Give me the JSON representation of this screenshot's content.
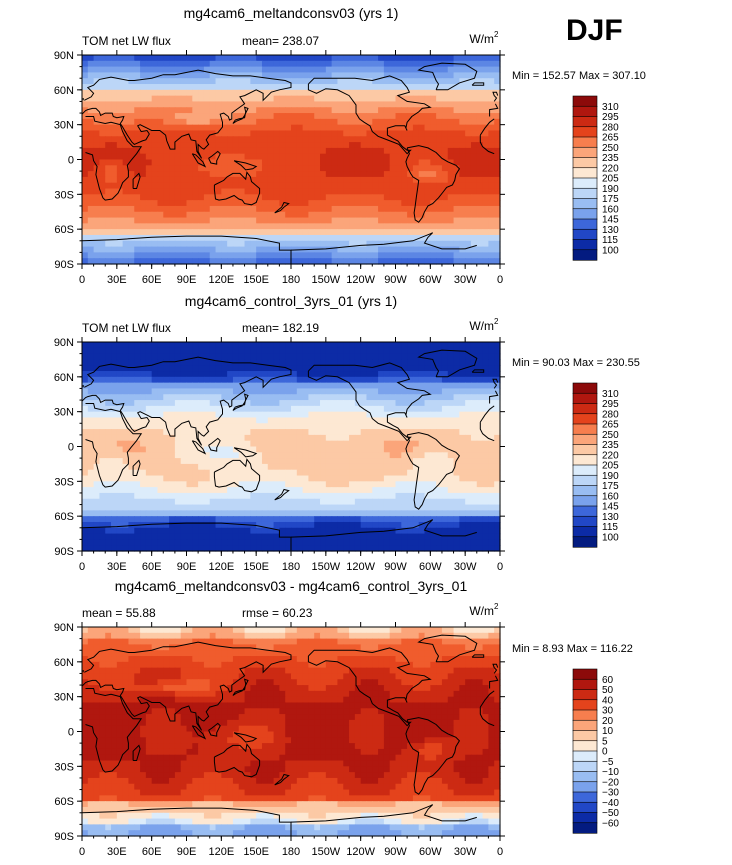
{
  "figure": {
    "season": "DJF"
  },
  "chart_data": [
    {
      "type": "heatmap",
      "title": "mg4cam6_meltandconsv03 (yrs 1)",
      "left_label": "TOM net LW flux",
      "center_label": "mean= 238.07",
      "units": "W/m",
      "units_exp": "2",
      "stats": "Min = 152.57 Max = 307.10",
      "mean": 238.07,
      "min": 152.57,
      "max": 307.1,
      "xticks": [
        "0",
        "30E",
        "60E",
        "90E",
        "120E",
        "150E",
        "180",
        "150W",
        "120W",
        "90W",
        "60W",
        "30W",
        "0"
      ],
      "yticks": [
        "90N",
        "60N",
        "30N",
        "0",
        "30S",
        "60S",
        "90S"
      ],
      "colorbar_levels": [
        "310",
        "295",
        "280",
        "265",
        "250",
        "235",
        "220",
        "205",
        "190",
        "175",
        "160",
        "145",
        "130",
        "115",
        "100"
      ],
      "palette": [
        "#8c0a0a",
        "#b0170f",
        "#cc2a13",
        "#e4431c",
        "#f05c2d",
        "#f77e4e",
        "#fba57a",
        "#fcc9a5",
        "#fde8d3",
        "#dcecfb",
        "#bcd6f7",
        "#99bdf2",
        "#7aa2ec",
        "#5c86e4",
        "#3d67da",
        "#2147c6",
        "#0c2ba6",
        "#031b80"
      ],
      "field": "full"
    },
    {
      "type": "heatmap",
      "title": "mg4cam6_control_3yrs_01 (yrs 1)",
      "left_label": "TOM net LW flux",
      "center_label": "mean= 182.19",
      "units": "W/m",
      "units_exp": "2",
      "stats": "Min =  90.03 Max = 230.55",
      "mean": 182.19,
      "min": 90.03,
      "max": 230.55,
      "xticks": [
        "0",
        "30E",
        "60E",
        "90E",
        "120E",
        "150E",
        "180",
        "150W",
        "120W",
        "90W",
        "60W",
        "30W",
        "0"
      ],
      "yticks": [
        "90N",
        "60N",
        "30N",
        "0",
        "30S",
        "60S",
        "90S"
      ],
      "colorbar_levels": [
        "310",
        "295",
        "280",
        "265",
        "250",
        "235",
        "220",
        "205",
        "190",
        "175",
        "160",
        "145",
        "130",
        "115",
        "100"
      ],
      "palette": [
        "#8c0a0a",
        "#b0170f",
        "#cc2a13",
        "#e4431c",
        "#f05c2d",
        "#f77e4e",
        "#fba57a",
        "#fcc9a5",
        "#fde8d3",
        "#dcecfb",
        "#bcd6f7",
        "#99bdf2",
        "#7aa2ec",
        "#5c86e4",
        "#3d67da",
        "#2147c6",
        "#0c2ba6",
        "#031b80"
      ],
      "field": "control"
    },
    {
      "type": "heatmap",
      "title": "mg4cam6_meltandconsv03 - mg4cam6_control_3yrs_01",
      "left_label": "mean =   55.88",
      "center_label": "rmse =   60.23",
      "units": "W/m",
      "units_exp": "2",
      "stats": "Min =    8.93 Max = 116.22",
      "mean": 55.88,
      "rmse": 60.23,
      "min": 8.93,
      "max": 116.22,
      "xticks": [
        "0",
        "30E",
        "60E",
        "90E",
        "120E",
        "150E",
        "180",
        "150W",
        "120W",
        "90W",
        "60W",
        "30W",
        "0"
      ],
      "yticks": [
        "90N",
        "60N",
        "30N",
        "0",
        "30S",
        "60S",
        "90S"
      ],
      "colorbar_levels": [
        "60",
        "50",
        "40",
        "30",
        "20",
        "10",
        "5",
        "0",
        "−5",
        "−10",
        "−20",
        "−30",
        "−40",
        "−50",
        "−60"
      ],
      "palette": [
        "#8c0a0a",
        "#b0170f",
        "#cc2a13",
        "#e4431c",
        "#f05c2d",
        "#f77e4e",
        "#fba57a",
        "#fcc9a5",
        "#fde8d3",
        "#dcecfb",
        "#bcd6f7",
        "#99bdf2",
        "#7aa2ec",
        "#5c86e4",
        "#3d67da",
        "#2147c6",
        "#0c2ba6",
        "#031b80"
      ],
      "field": "diff"
    }
  ]
}
